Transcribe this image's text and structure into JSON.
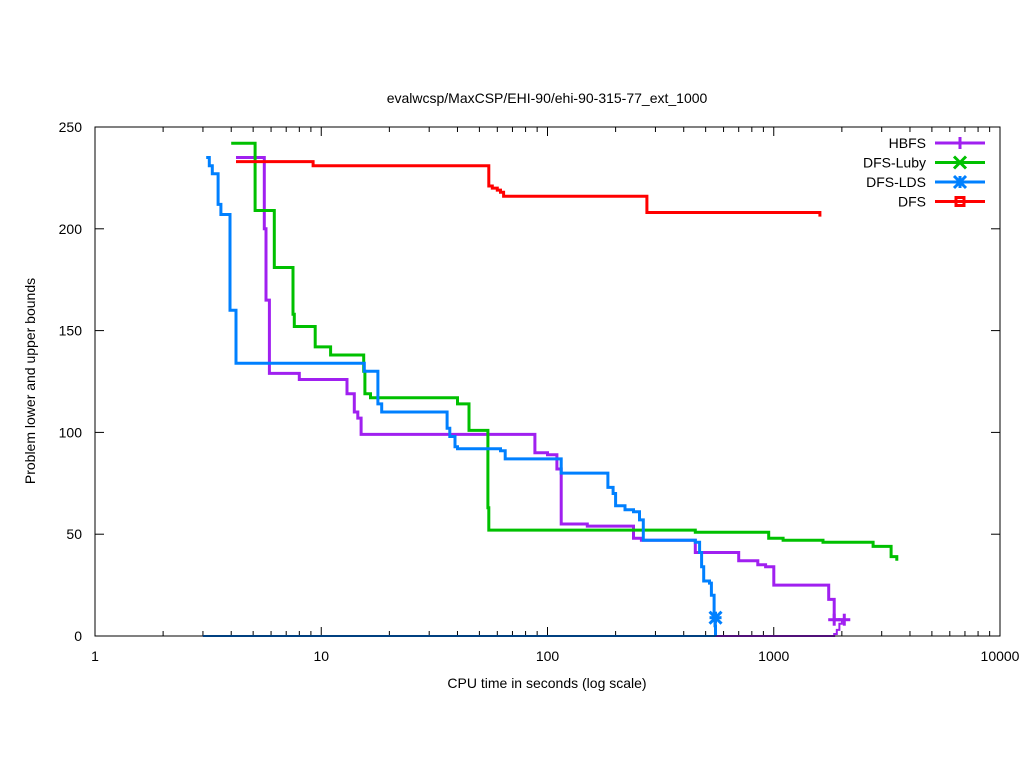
{
  "chart_data": {
    "type": "line",
    "title": "evalwcsp/MaxCSP/EHI-90/ehi-90-315-77_ext_1000",
    "xlabel": "CPU time in seconds (log scale)",
    "ylabel": "Problem lower and upper bounds",
    "xscale": "log",
    "xlim": [
      1,
      10000
    ],
    "ylim": [
      0,
      250
    ],
    "x_ticks": [
      1,
      10,
      100,
      1000,
      10000
    ],
    "x_tick_labels": [
      "1",
      "10",
      "100",
      "1000",
      "10000"
    ],
    "y_ticks": [
      0,
      50,
      100,
      150,
      200,
      250
    ],
    "y_tick_labels": [
      "0",
      "50",
      "100",
      "150",
      "200",
      "250"
    ],
    "legend_position": "top-right",
    "series": [
      {
        "name": "HBFS",
        "color": "#a020f0",
        "marker": "plus",
        "upper": [
          [
            4.2,
            235
          ],
          [
            5.5,
            235
          ],
          [
            5.6,
            200
          ],
          [
            5.7,
            165
          ],
          [
            5.9,
            129
          ],
          [
            8,
            129
          ],
          [
            8,
            126
          ],
          [
            13,
            126
          ],
          [
            13,
            119
          ],
          [
            14,
            119
          ],
          [
            14,
            110
          ],
          [
            14.5,
            107
          ],
          [
            15,
            99
          ],
          [
            85,
            99
          ],
          [
            88,
            90
          ],
          [
            100,
            89
          ],
          [
            110,
            82
          ],
          [
            115,
            55
          ],
          [
            150,
            55
          ],
          [
            150,
            54
          ],
          [
            230,
            54
          ],
          [
            240,
            48
          ],
          [
            260,
            47
          ],
          [
            400,
            47
          ],
          [
            450,
            41
          ],
          [
            650,
            41
          ],
          [
            700,
            37
          ],
          [
            800,
            37
          ],
          [
            850,
            35
          ],
          [
            920,
            34
          ],
          [
            1000,
            25
          ],
          [
            1500,
            25
          ],
          [
            1700,
            25
          ],
          [
            1750,
            18
          ],
          [
            1850,
            8
          ],
          [
            2050,
            8
          ]
        ],
        "lower": [
          [
            3,
            0
          ],
          [
            1800,
            0
          ],
          [
            1850,
            1
          ],
          [
            1900,
            3
          ],
          [
            1950,
            6
          ],
          [
            2000,
            8
          ]
        ],
        "markers": [
          [
            1850,
            8
          ],
          [
            2050,
            8
          ]
        ]
      },
      {
        "name": "DFS-Luby",
        "color": "#00c000",
        "marker": "x",
        "upper": [
          [
            4,
            242
          ],
          [
            5,
            242
          ],
          [
            5.1,
            209
          ],
          [
            6.1,
            209
          ],
          [
            6.2,
            181
          ],
          [
            7.4,
            181
          ],
          [
            7.5,
            158
          ],
          [
            7.6,
            152
          ],
          [
            9.2,
            152
          ],
          [
            9.4,
            142
          ],
          [
            11,
            142
          ],
          [
            11,
            138
          ],
          [
            15,
            138
          ],
          [
            15.4,
            130
          ],
          [
            15.6,
            119
          ],
          [
            16.5,
            117
          ],
          [
            38,
            117
          ],
          [
            40,
            114
          ],
          [
            44,
            114
          ],
          [
            45,
            101
          ],
          [
            54,
            101
          ],
          [
            54.5,
            63
          ],
          [
            55,
            52
          ],
          [
            450,
            52
          ],
          [
            450,
            51
          ],
          [
            900,
            51
          ],
          [
            950,
            48
          ],
          [
            1100,
            47
          ],
          [
            1600,
            47
          ],
          [
            1650,
            46
          ],
          [
            2700,
            46
          ],
          [
            2750,
            44
          ],
          [
            3200,
            44
          ],
          [
            3300,
            39
          ],
          [
            3500,
            37
          ]
        ],
        "lower": [],
        "markers": []
      },
      {
        "name": "DFS-LDS",
        "color": "#0080ff",
        "marker": "star",
        "upper": [
          [
            3.1,
            235
          ],
          [
            3.2,
            231
          ],
          [
            3.3,
            227
          ],
          [
            3.5,
            212
          ],
          [
            3.6,
            207
          ],
          [
            3.9,
            207
          ],
          [
            3.95,
            160
          ],
          [
            4.15,
            160
          ],
          [
            4.2,
            134
          ],
          [
            15,
            134
          ],
          [
            15.5,
            130
          ],
          [
            17.5,
            130
          ],
          [
            17.8,
            114
          ],
          [
            18.5,
            110
          ],
          [
            35,
            110
          ],
          [
            36,
            102
          ],
          [
            37,
            98
          ],
          [
            39,
            93
          ],
          [
            40,
            92
          ],
          [
            60,
            92
          ],
          [
            62,
            91
          ],
          [
            65,
            87
          ],
          [
            110,
            87
          ],
          [
            115,
            80
          ],
          [
            180,
            80
          ],
          [
            185,
            73
          ],
          [
            195,
            70
          ],
          [
            200,
            64
          ],
          [
            220,
            62
          ],
          [
            240,
            61
          ],
          [
            255,
            57
          ],
          [
            265,
            47
          ],
          [
            430,
            47
          ],
          [
            450,
            46
          ],
          [
            470,
            41
          ],
          [
            480,
            34
          ],
          [
            490,
            27
          ],
          [
            520,
            26
          ],
          [
            530,
            20
          ],
          [
            545,
            9
          ],
          [
            550,
            5
          ],
          [
            553,
            0
          ]
        ],
        "lower": [
          [
            3,
            0
          ],
          [
            553,
            0
          ]
        ],
        "markers": [
          [
            553,
            9
          ]
        ]
      },
      {
        "name": "DFS",
        "color": "#ff0000",
        "marker": "square",
        "upper": [
          [
            4.2,
            233
          ],
          [
            9,
            233
          ],
          [
            9.2,
            231
          ],
          [
            54,
            231
          ],
          [
            55,
            221
          ],
          [
            57,
            220
          ],
          [
            60,
            219
          ],
          [
            62,
            218
          ],
          [
            64,
            216
          ],
          [
            270,
            216
          ],
          [
            275,
            208
          ],
          [
            1580,
            208
          ],
          [
            1600,
            206
          ]
        ],
        "lower": [],
        "markers": []
      }
    ]
  }
}
